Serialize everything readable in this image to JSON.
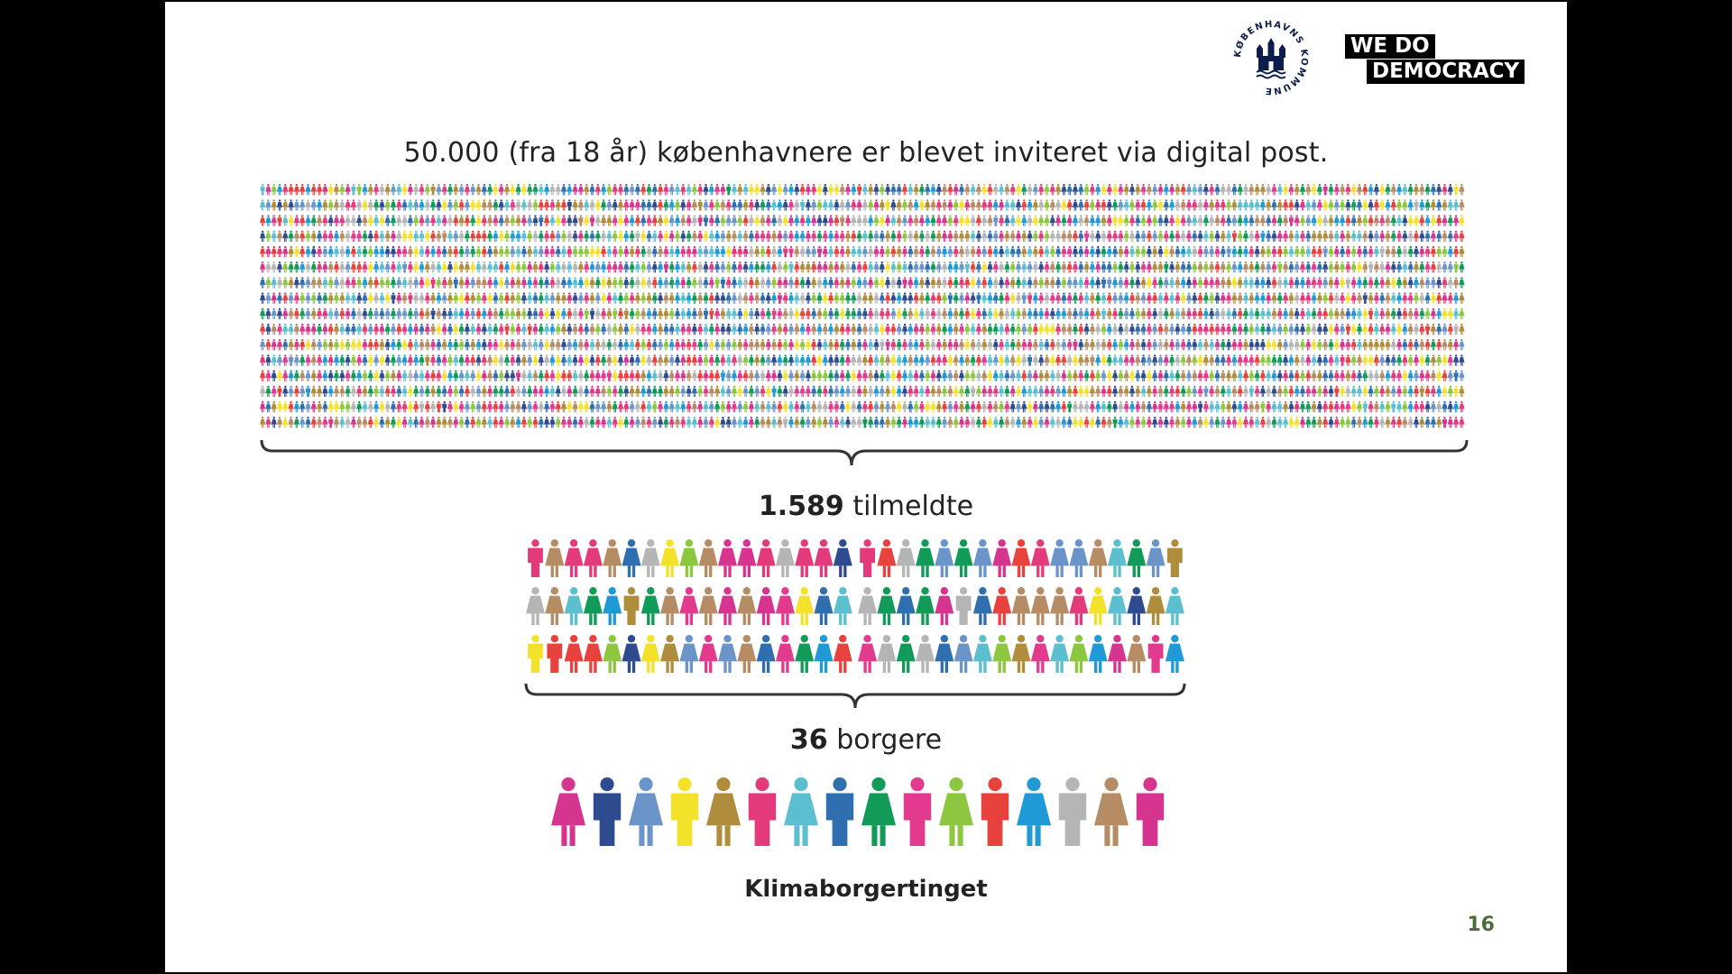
{
  "headline": "50.000 (fra 18 år) københavnere er blevet inviteret via digital post.",
  "invited": {
    "count": 50000
  },
  "registered": {
    "number": "1.589",
    "label": "tilmeldte"
  },
  "citizens": {
    "number": "36",
    "label": "borgere"
  },
  "assembly_name": "Klimaborgertinget",
  "page_number": "16",
  "logos": {
    "copenhagen": {
      "text": "KØBENHAVNS KOMMUNE",
      "color": "#0b1c4d"
    },
    "we_do_democracy": {
      "line1": "WE DO",
      "line2": "DEMOCRACY"
    }
  },
  "colors": {
    "page_number": "#4f6b3a",
    "people": [
      "#d6358f",
      "#2e4b8f",
      "#6b95c9",
      "#f4e12a",
      "#b08d3c",
      "#e23a7b",
      "#5bbfd0",
      "#2f6fb0",
      "#119a58",
      "#e23a8c",
      "#8dc63f",
      "#e8423f",
      "#1f9ad6",
      "#b5b5b5",
      "#b58c63"
    ]
  },
  "icons": {
    "person": "person-icon",
    "brace": "curly-brace-icon"
  }
}
